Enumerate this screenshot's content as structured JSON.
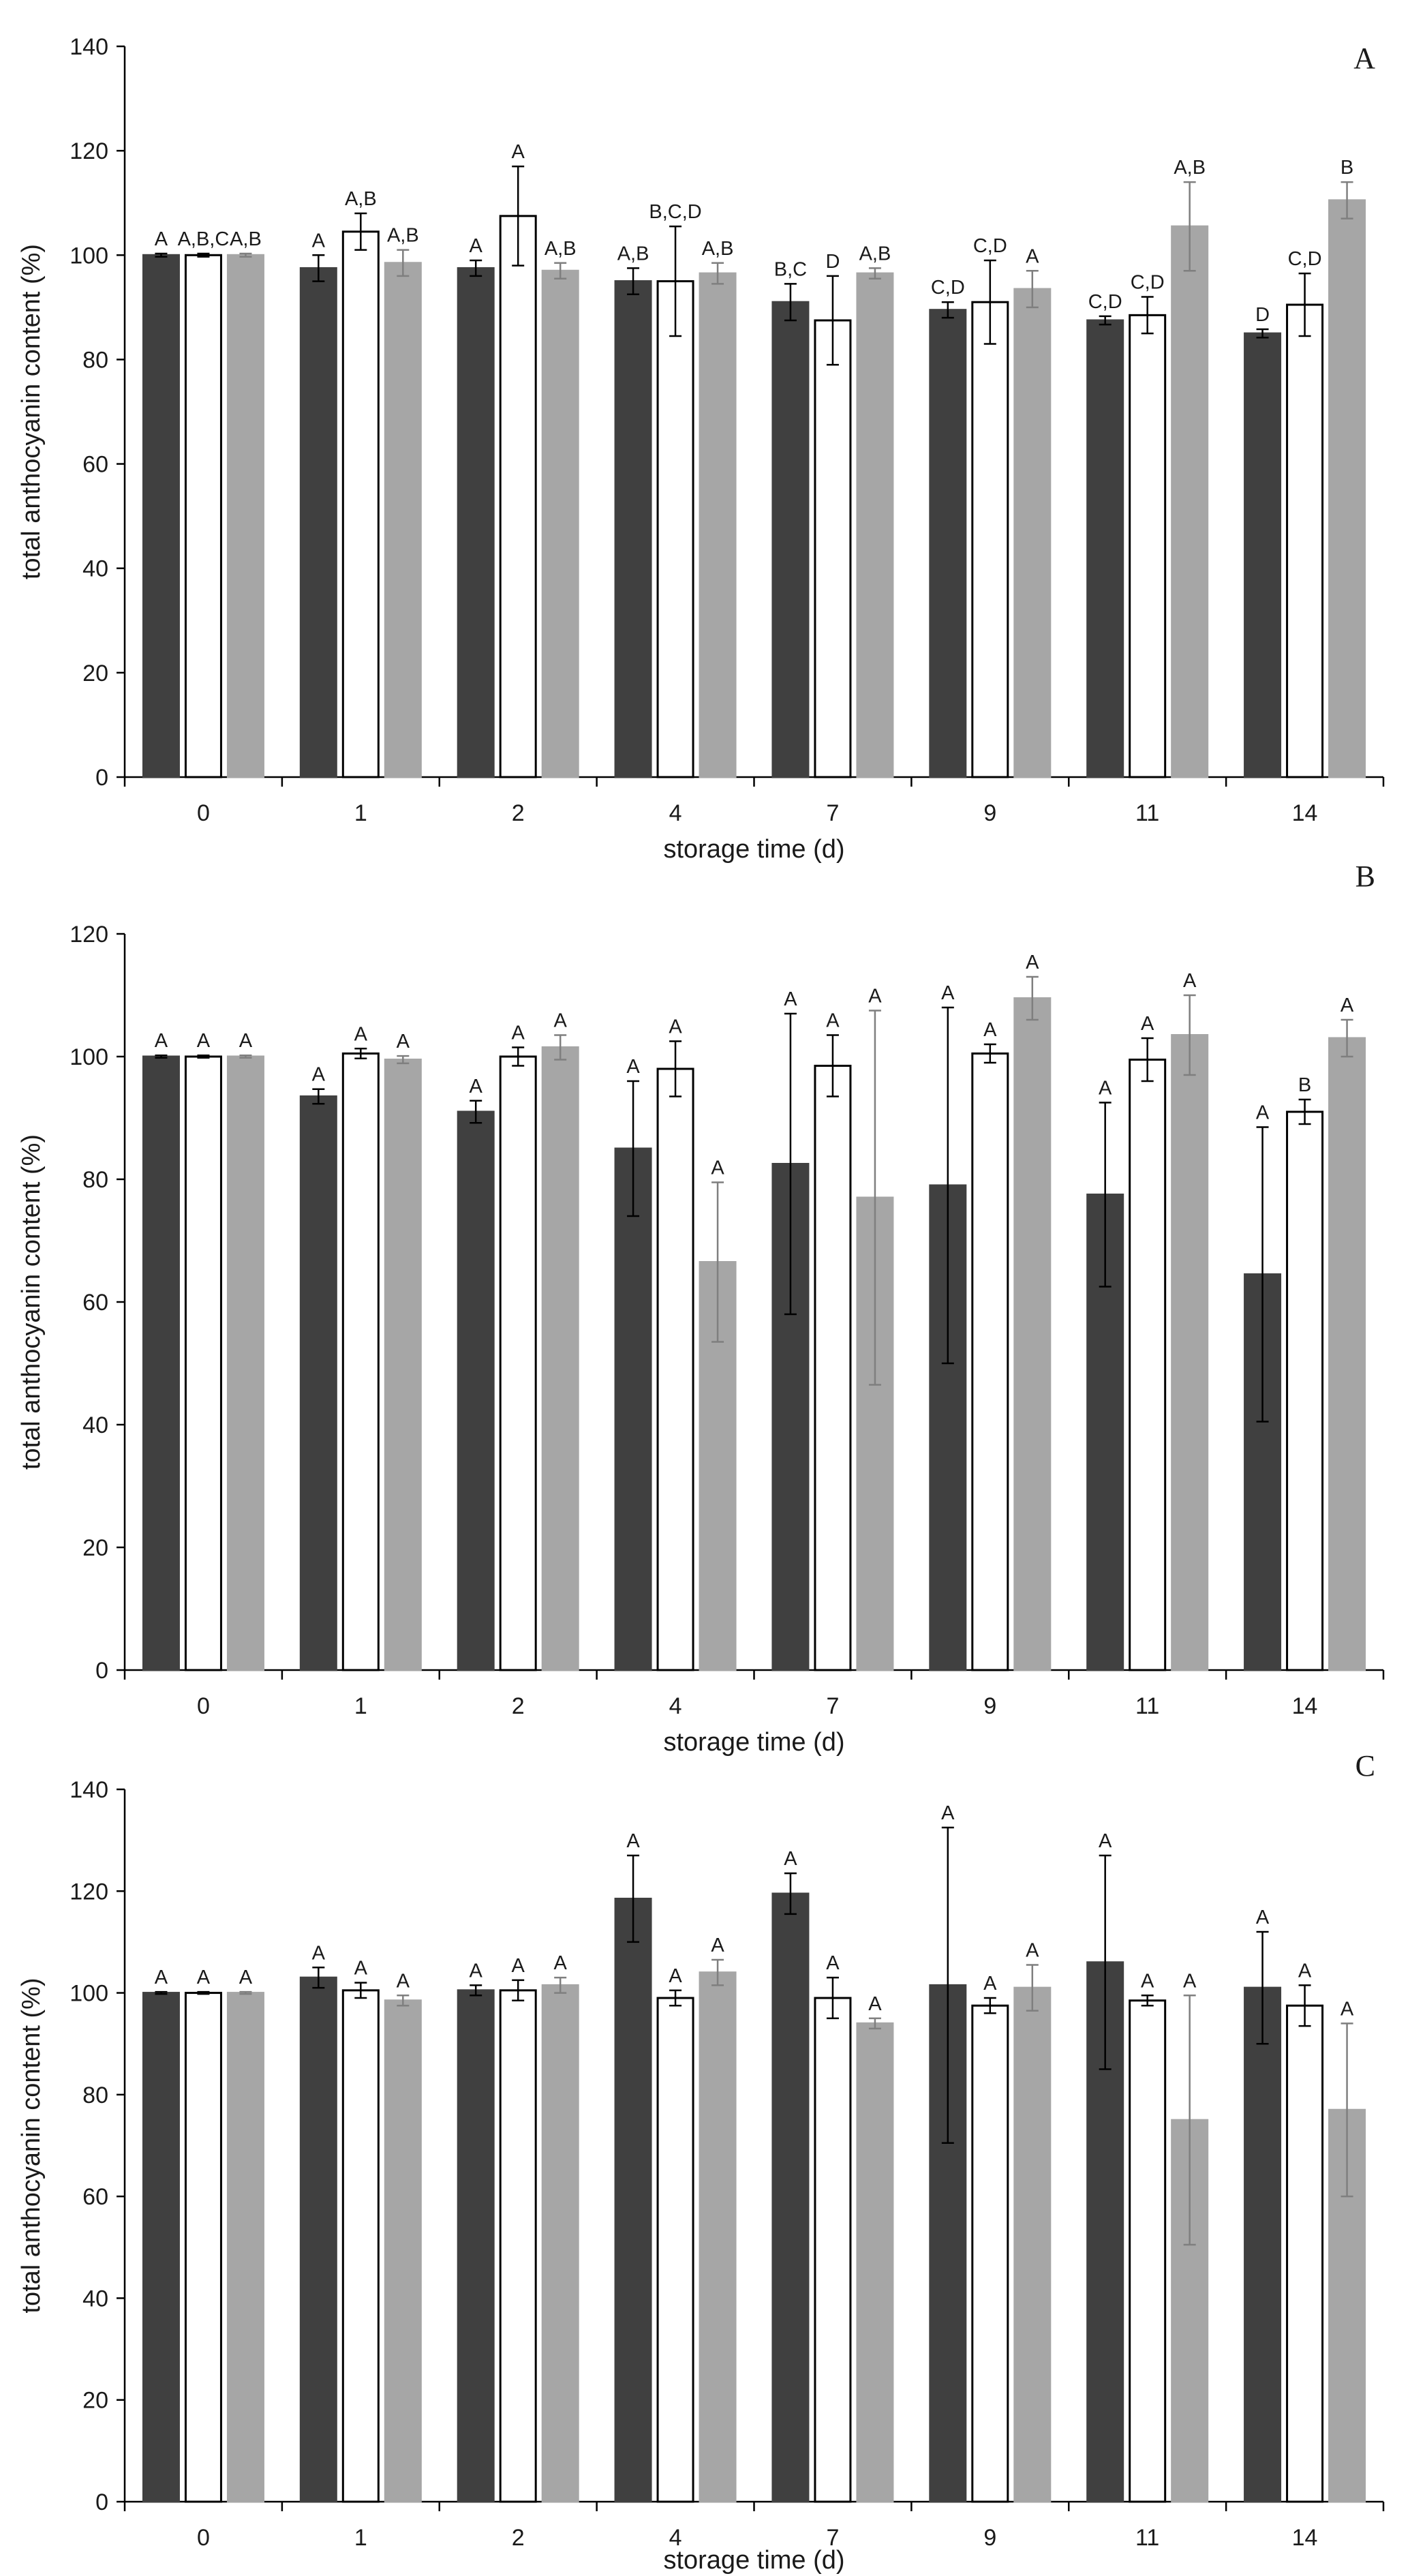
{
  "colors": {
    "series": [
      "#404040",
      "#ffffff",
      "#a6a6a6"
    ],
    "series_stroke": [
      "#404040",
      "#000000",
      "#a6a6a6"
    ],
    "error": [
      "#000000",
      "#000000",
      "#7f7f7f"
    ]
  },
  "chart_data": [
    {
      "type": "bar",
      "panel": "A",
      "title": "A",
      "xlabel": "storage time (d)",
      "ylabel": "total anthocyanin content (%)",
      "ylim": [
        0,
        140
      ],
      "yticks": [
        "0",
        "20",
        "40",
        "60",
        "80",
        "100",
        "120",
        "140"
      ],
      "categories": [
        "0",
        "1",
        "2",
        "4",
        "7",
        "9",
        "11",
        "14"
      ],
      "series": [
        {
          "values": [
            100,
            97.5,
            97.5,
            95,
            91,
            89.5,
            87.5,
            85
          ],
          "errors": [
            0.3,
            2.5,
            1.5,
            2.5,
            3.5,
            1.5,
            0.8,
            0.8
          ],
          "labels": [
            "A",
            "A",
            "A",
            "A,B",
            "B,C",
            "C,D",
            "C,D",
            "D"
          ]
        },
        {
          "values": [
            100,
            104.5,
            107.5,
            95,
            87.5,
            91,
            88.5,
            90.5
          ],
          "errors": [
            0.3,
            3.5,
            9.5,
            10.5,
            8.5,
            8,
            3.5,
            6
          ],
          "labels": [
            "A,B,C",
            "A,B",
            "A",
            "B,C,D",
            "D",
            "C,D",
            "C,D",
            "C,D"
          ]
        },
        {
          "values": [
            100,
            98.5,
            97,
            96.5,
            96.5,
            93.5,
            105.5,
            110.5
          ],
          "errors": [
            0.3,
            2.5,
            1.5,
            2,
            1,
            3.5,
            8.5,
            3.5
          ],
          "labels": [
            "A,B",
            "A,B",
            "A,B",
            "A,B",
            "A,B",
            "A",
            "A,B",
            "B"
          ]
        }
      ]
    },
    {
      "type": "bar",
      "panel": "B",
      "title": "B",
      "xlabel": "storage time (d)",
      "ylabel": "total anthocyanin content (%)",
      "ylim": [
        0,
        120
      ],
      "yticks": [
        "0",
        "20",
        "40",
        "60",
        "80",
        "100",
        "120"
      ],
      "categories": [
        "0",
        "1",
        "2",
        "4",
        "7",
        "9",
        "11",
        "14"
      ],
      "series": [
        {
          "values": [
            100,
            93.5,
            91,
            85,
            82.5,
            79,
            77.5,
            64.5
          ],
          "errors": [
            0.2,
            1.2,
            1.8,
            11,
            24.5,
            29,
            15,
            24
          ],
          "labels": [
            "A",
            "A",
            "A",
            "A",
            "A",
            "A",
            "A",
            "A"
          ]
        },
        {
          "values": [
            100,
            100.5,
            100,
            98,
            98.5,
            100.5,
            99.5,
            91
          ],
          "errors": [
            0.2,
            0.8,
            1.5,
            4.5,
            5,
            1.5,
            3.5,
            2
          ],
          "labels": [
            "A",
            "A",
            "A",
            "A",
            "A",
            "A",
            "A",
            "B"
          ]
        },
        {
          "values": [
            100,
            99.5,
            101.5,
            66.5,
            77,
            109.5,
            103.5,
            103
          ],
          "errors": [
            0.2,
            0.6,
            2,
            13,
            30.5,
            3.5,
            6.5,
            3
          ],
          "labels": [
            "A",
            "A",
            "A",
            "A",
            "A",
            "A",
            "A",
            "A"
          ]
        }
      ]
    },
    {
      "type": "bar",
      "panel": "C",
      "title": "C",
      "xlabel": "storage time (d)",
      "ylabel": "total anthocyanin content (%)",
      "ylim": [
        0,
        140
      ],
      "yticks": [
        "0",
        "20",
        "40",
        "60",
        "80",
        "100",
        "120",
        "140"
      ],
      "categories": [
        "0",
        "1",
        "2",
        "4",
        "7",
        "9",
        "11",
        "14"
      ],
      "series": [
        {
          "values": [
            100,
            103,
            100.5,
            118.5,
            119.5,
            101.5,
            106,
            101
          ],
          "errors": [
            0.2,
            2,
            1,
            8.5,
            4,
            31,
            21,
            11
          ],
          "labels": [
            "A",
            "A",
            "A",
            "A",
            "A",
            "A",
            "A",
            "A"
          ]
        },
        {
          "values": [
            100,
            100.5,
            100.5,
            99,
            99,
            97.5,
            98.5,
            97.5
          ],
          "errors": [
            0.2,
            1.5,
            2,
            1.5,
            4,
            1.5,
            1,
            4
          ],
          "labels": [
            "A",
            "A",
            "A",
            "A",
            "A",
            "A",
            "A",
            "A"
          ]
        },
        {
          "values": [
            100,
            98.5,
            101.5,
            104,
            94,
            101,
            75,
            77
          ],
          "errors": [
            0.2,
            1,
            1.5,
            2.5,
            1,
            4.5,
            24.5,
            17
          ],
          "labels": [
            "A",
            "A",
            "A",
            "A",
            "A",
            "A",
            "A",
            "A"
          ]
        }
      ]
    }
  ]
}
